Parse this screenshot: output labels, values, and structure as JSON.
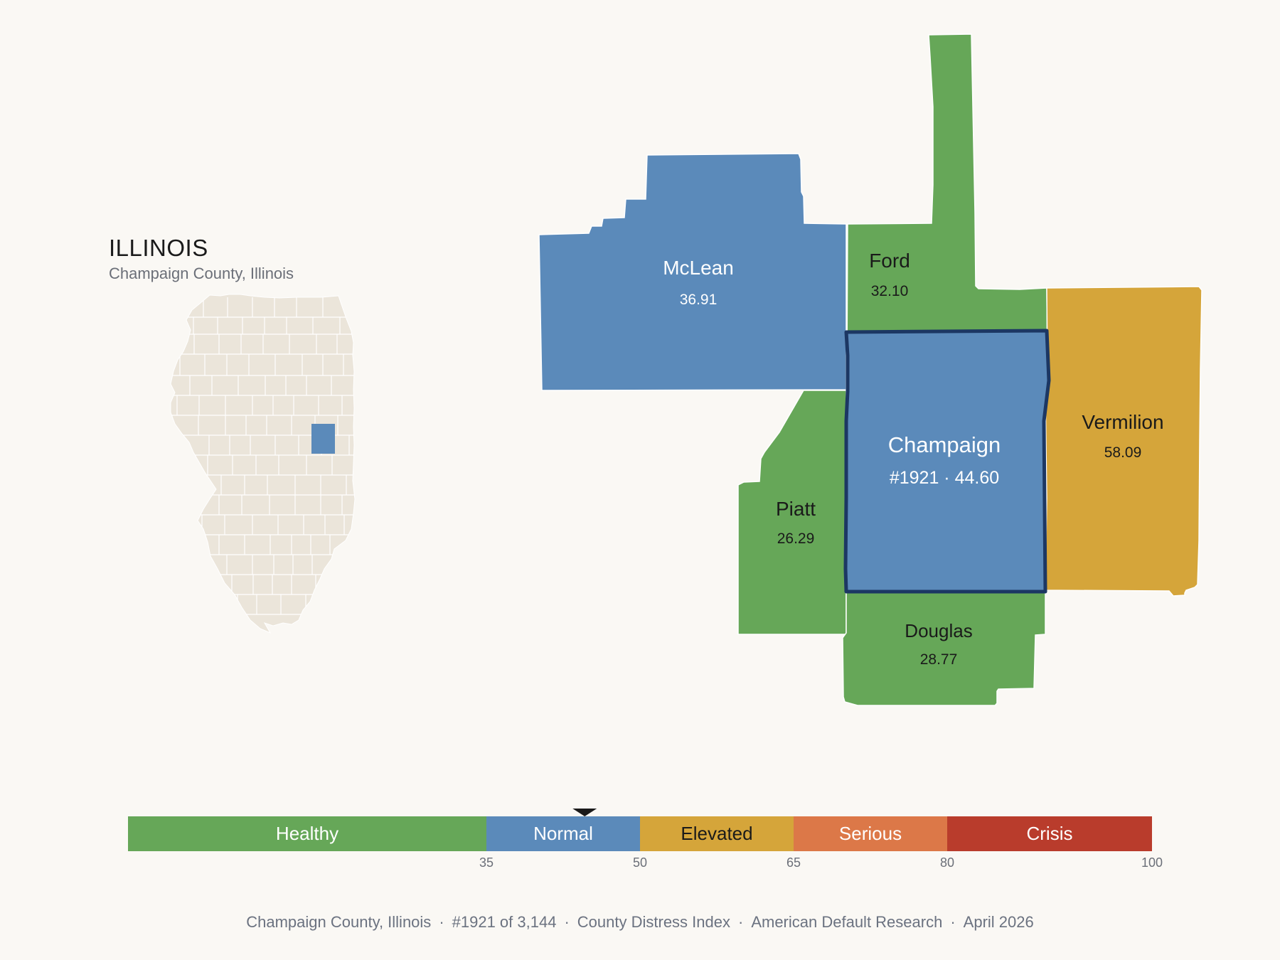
{
  "state_panel": {
    "title": "ILLINOIS",
    "subtitle": "Champaign County, Illinois"
  },
  "counties": [
    {
      "id": "mclean",
      "name": "McLean",
      "value": "36.91",
      "category": "Normal"
    },
    {
      "id": "ford",
      "name": "Ford",
      "value": "32.10",
      "category": "Healthy"
    },
    {
      "id": "vermilion",
      "name": "Vermilion",
      "value": "58.09",
      "category": "Elevated"
    },
    {
      "id": "piatt",
      "name": "Piatt",
      "value": "26.29",
      "category": "Healthy"
    },
    {
      "id": "douglas",
      "name": "Douglas",
      "value": "28.77",
      "category": "Healthy"
    },
    {
      "id": "champaign",
      "name": "Champaign",
      "value": "#1921 · 44.60",
      "category": "Normal",
      "selected": true
    }
  ],
  "scale": {
    "min": 0,
    "max": 100,
    "current_value": 44.6,
    "segments": [
      {
        "label": "Healthy",
        "from": 0,
        "to": 35,
        "color": "#66a758",
        "text_color": "#ffffff"
      },
      {
        "label": "Normal",
        "from": 35,
        "to": 50,
        "color": "#5b8aba",
        "text_color": "#ffffff"
      },
      {
        "label": "Elevated",
        "from": 50,
        "to": 65,
        "color": "#d5a53a",
        "text_color": "#1a1a1a"
      },
      {
        "label": "Serious",
        "from": 65,
        "to": 80,
        "color": "#dc7848",
        "text_color": "#ffffff"
      },
      {
        "label": "Crisis",
        "from": 80,
        "to": 100,
        "color": "#b93c2c",
        "text_color": "#ffffff"
      }
    ],
    "ticks": [
      "35",
      "50",
      "65",
      "80",
      "100"
    ]
  },
  "colors": {
    "healthy": "#66a758",
    "normal": "#5b8aba",
    "elevated": "#d5a53a",
    "selected_outline": "#1c3763",
    "state_fill": "#ebe5da",
    "background": "#faf8f4"
  },
  "footer": {
    "parts": [
      "Champaign County, Illinois",
      "#1921 of 3,144",
      "County Distress Index",
      "American Default Research",
      "April 2026"
    ],
    "separator": "·"
  }
}
